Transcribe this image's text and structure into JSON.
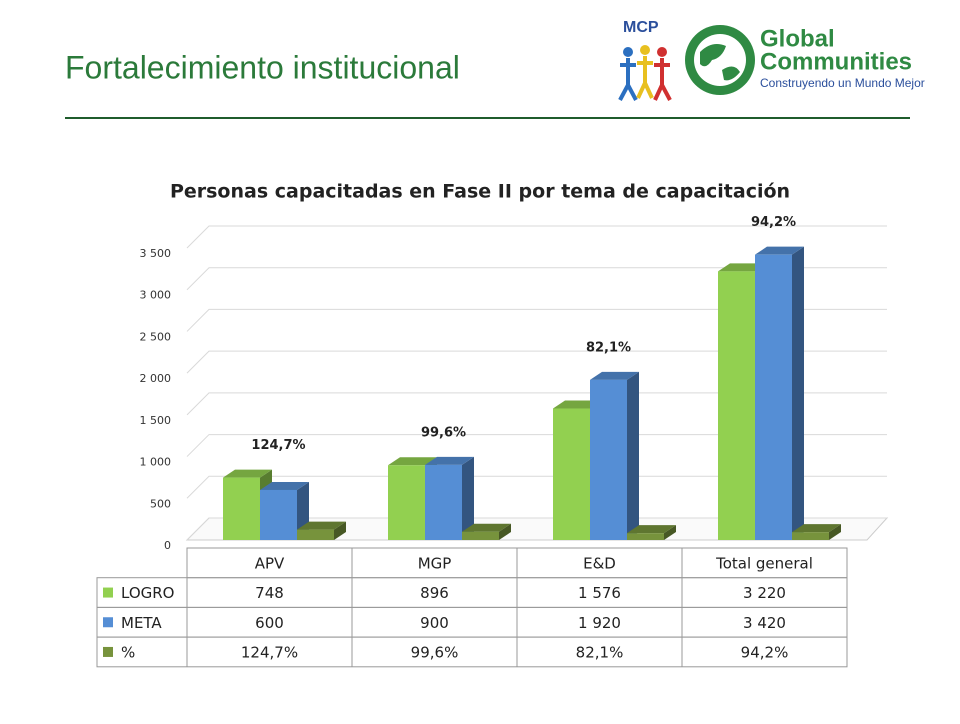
{
  "header": {
    "title": "Fortalecimiento institucional",
    "logo_mcp": "MCP",
    "logo_name_lines": [
      "Global",
      "Communities"
    ],
    "logo_tagline": "Construyendo un Mundo Mejor"
  },
  "chart_data": {
    "type": "bar3d",
    "title": "Personas capacitadas en Fase II por tema de capacitación",
    "categories": [
      "APV",
      "MGP",
      "E&D",
      "Total general"
    ],
    "series": [
      {
        "name": "LOGRO",
        "color": "#92d050",
        "values": [
          748,
          896,
          1576,
          3220
        ],
        "value_labels": [
          "748",
          "896",
          "1 576",
          "3 220"
        ]
      },
      {
        "name": "META",
        "color": "#558ed5",
        "values": [
          600,
          900,
          1920,
          3420
        ],
        "value_labels": [
          "600",
          "900",
          "1 920",
          "3 420"
        ]
      },
      {
        "name": "%",
        "color": "#77933c",
        "values": [
          124.7,
          99.6,
          82.1,
          94.2
        ],
        "value_labels": [
          "124,7%",
          "99,6%",
          "82,1%",
          "94,2%"
        ]
      }
    ],
    "ylim": [
      0,
      3500
    ],
    "yticks": [
      0,
      500,
      {
        "value": 1000,
        "label": "1 000"
      },
      {
        "value": 1500,
        "label": "1 500"
      },
      {
        "value": 2000,
        "label": "2 000"
      },
      {
        "value": 2500,
        "label": "2 500"
      },
      {
        "value": 3000,
        "label": "3 000"
      },
      {
        "value": 3500,
        "label": "3 500"
      }
    ],
    "grid": true,
    "data_table": true
  }
}
